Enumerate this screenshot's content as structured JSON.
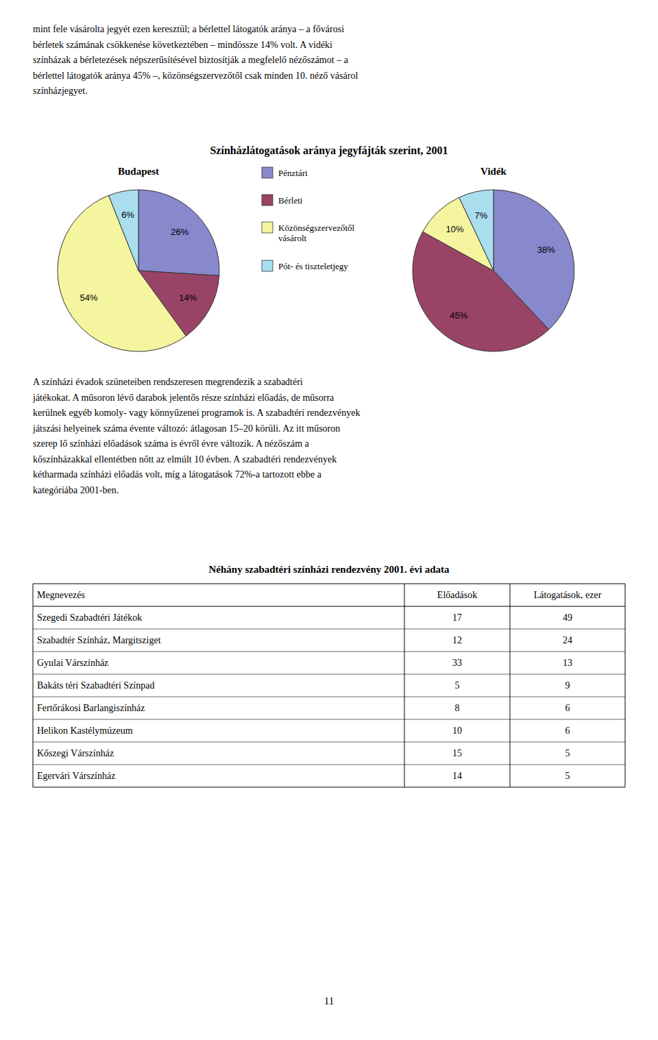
{
  "title": "Színházlátogatások aránya jegyfájták szerint, 2001",
  "chart_data": [
    {
      "type": "pie",
      "title": "Budapest",
      "categories": [
        "Pénztári",
        "Bérleti",
        "Közönségszervezőtől\nvásárolt",
        "Pót- és tiszteletjegy"
      ],
      "values": [
        26,
        14,
        54,
        6
      ],
      "value_labels": [
        "26%",
        "14%",
        "54%",
        "6%"
      ],
      "colors": [
        "#8888cc",
        "#994466",
        "#f5f5a0",
        "#aadded"
      ],
      "data_labels": true,
      "legend": "right"
    },
    {
      "type": "pie",
      "title": "Vidék",
      "values": [
        38,
        45,
        10,
        7
      ],
      "value_labels": [
        "38%",
        "45%",
        "10%",
        "7%"
      ],
      "colors": [
        "#8888cc",
        "#994466",
        "#f5f5a0",
        "#aadded"
      ],
      "data_labels": true
    }
  ],
  "paragraphs": [
    [
      "mint fele vásárolta jegyét ezen keresztül; a bérlettel látogatók aránya – a fővárosi",
      "bérletek számának csökkenése következtében – mindössze 14% volt. A vidéki",
      "színházak a bérletezések népszerűsítésével biztosítják a megfelelő nézőszámot – a",
      "bérlettel látogatók aránya 45% –, közönségszervezőtől csak minden 10. néző vásárol",
      "színházjegyet."
    ],
    [
      "A színházi évadok szüneteiben rendszeresen megrendezik a szabadtéri",
      "játékokat. A műsoron lévő darabok jelentős része színházi előadás, de műsorra",
      "kerülnek egyéb komoly- vagy könnyűzenei programok is. A szabadtéri rendezvények",
      "játszási helyeinek száma évente változó: átlagosan 15–20 körüli. Az itt műsoron",
      "szerep lő színházi előadások száma is évről évre változik. A nézőszám a",
      "kőszínházakkal ellentétben nőtt az elmúlt 10 évben. A szabadtéri rendezvények",
      "kétharmada színházi előadás volt, míg a látogatások 72%-a tartozott ebbe a",
      "kategóriába 2001-ben."
    ]
  ],
  "table": {
    "title": "Néhány szabadtéri színházi rendezvény 2001. évi adata",
    "headers": [
      "Megnevezés",
      "Előadások",
      "Látogatások, ezer"
    ],
    "rows": [
      [
        "Szegedi Szabadtéri Játékok",
        "17",
        "49"
      ],
      [
        "Szabadtér Színház, Margitsziget",
        "12",
        "24"
      ],
      [
        "Gyulai Várszínház",
        "33",
        "13"
      ],
      [
        "Bakáts téri Szabadtéri Színpad",
        "5",
        "9"
      ],
      [
        "Fertőrákosi Barlangiszínház",
        "8",
        "6"
      ],
      [
        "Helikon Kastélymúzeum",
        "10",
        "6"
      ],
      [
        "Kőszegi Várszínház",
        "15",
        "5"
      ],
      [
        "Egervári Várszínház",
        "14",
        "5"
      ]
    ]
  },
  "page_number": "11"
}
